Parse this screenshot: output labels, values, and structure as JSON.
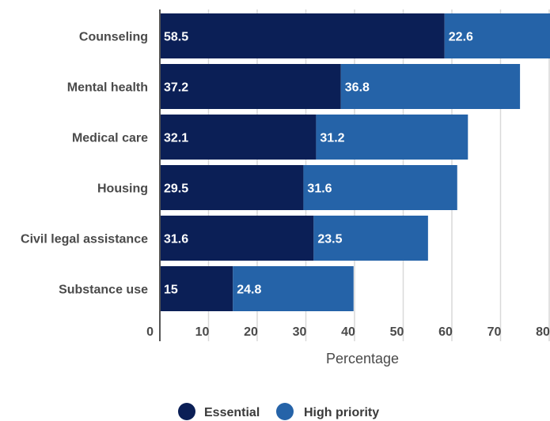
{
  "chart_data": {
    "type": "bar",
    "orientation": "horizontal",
    "stacked": true,
    "categories": [
      "Counseling",
      "Mental health",
      "Medical care",
      "Housing",
      "Civil legal assistance",
      "Substance use"
    ],
    "series": [
      {
        "name": "Essential",
        "values": [
          58.5,
          37.2,
          32.1,
          29.5,
          31.6,
          15
        ],
        "color": "#0b1f56"
      },
      {
        "name": "High priority",
        "values": [
          22.6,
          36.8,
          31.2,
          31.6,
          23.5,
          24.8
        ],
        "color": "#2563a8"
      }
    ],
    "xlabel": "Percentage",
    "xlim": [
      0,
      80
    ],
    "xticks": [
      0,
      10,
      20,
      30,
      40,
      50,
      60,
      70,
      80
    ],
    "grid": true,
    "legend": "bottom"
  }
}
